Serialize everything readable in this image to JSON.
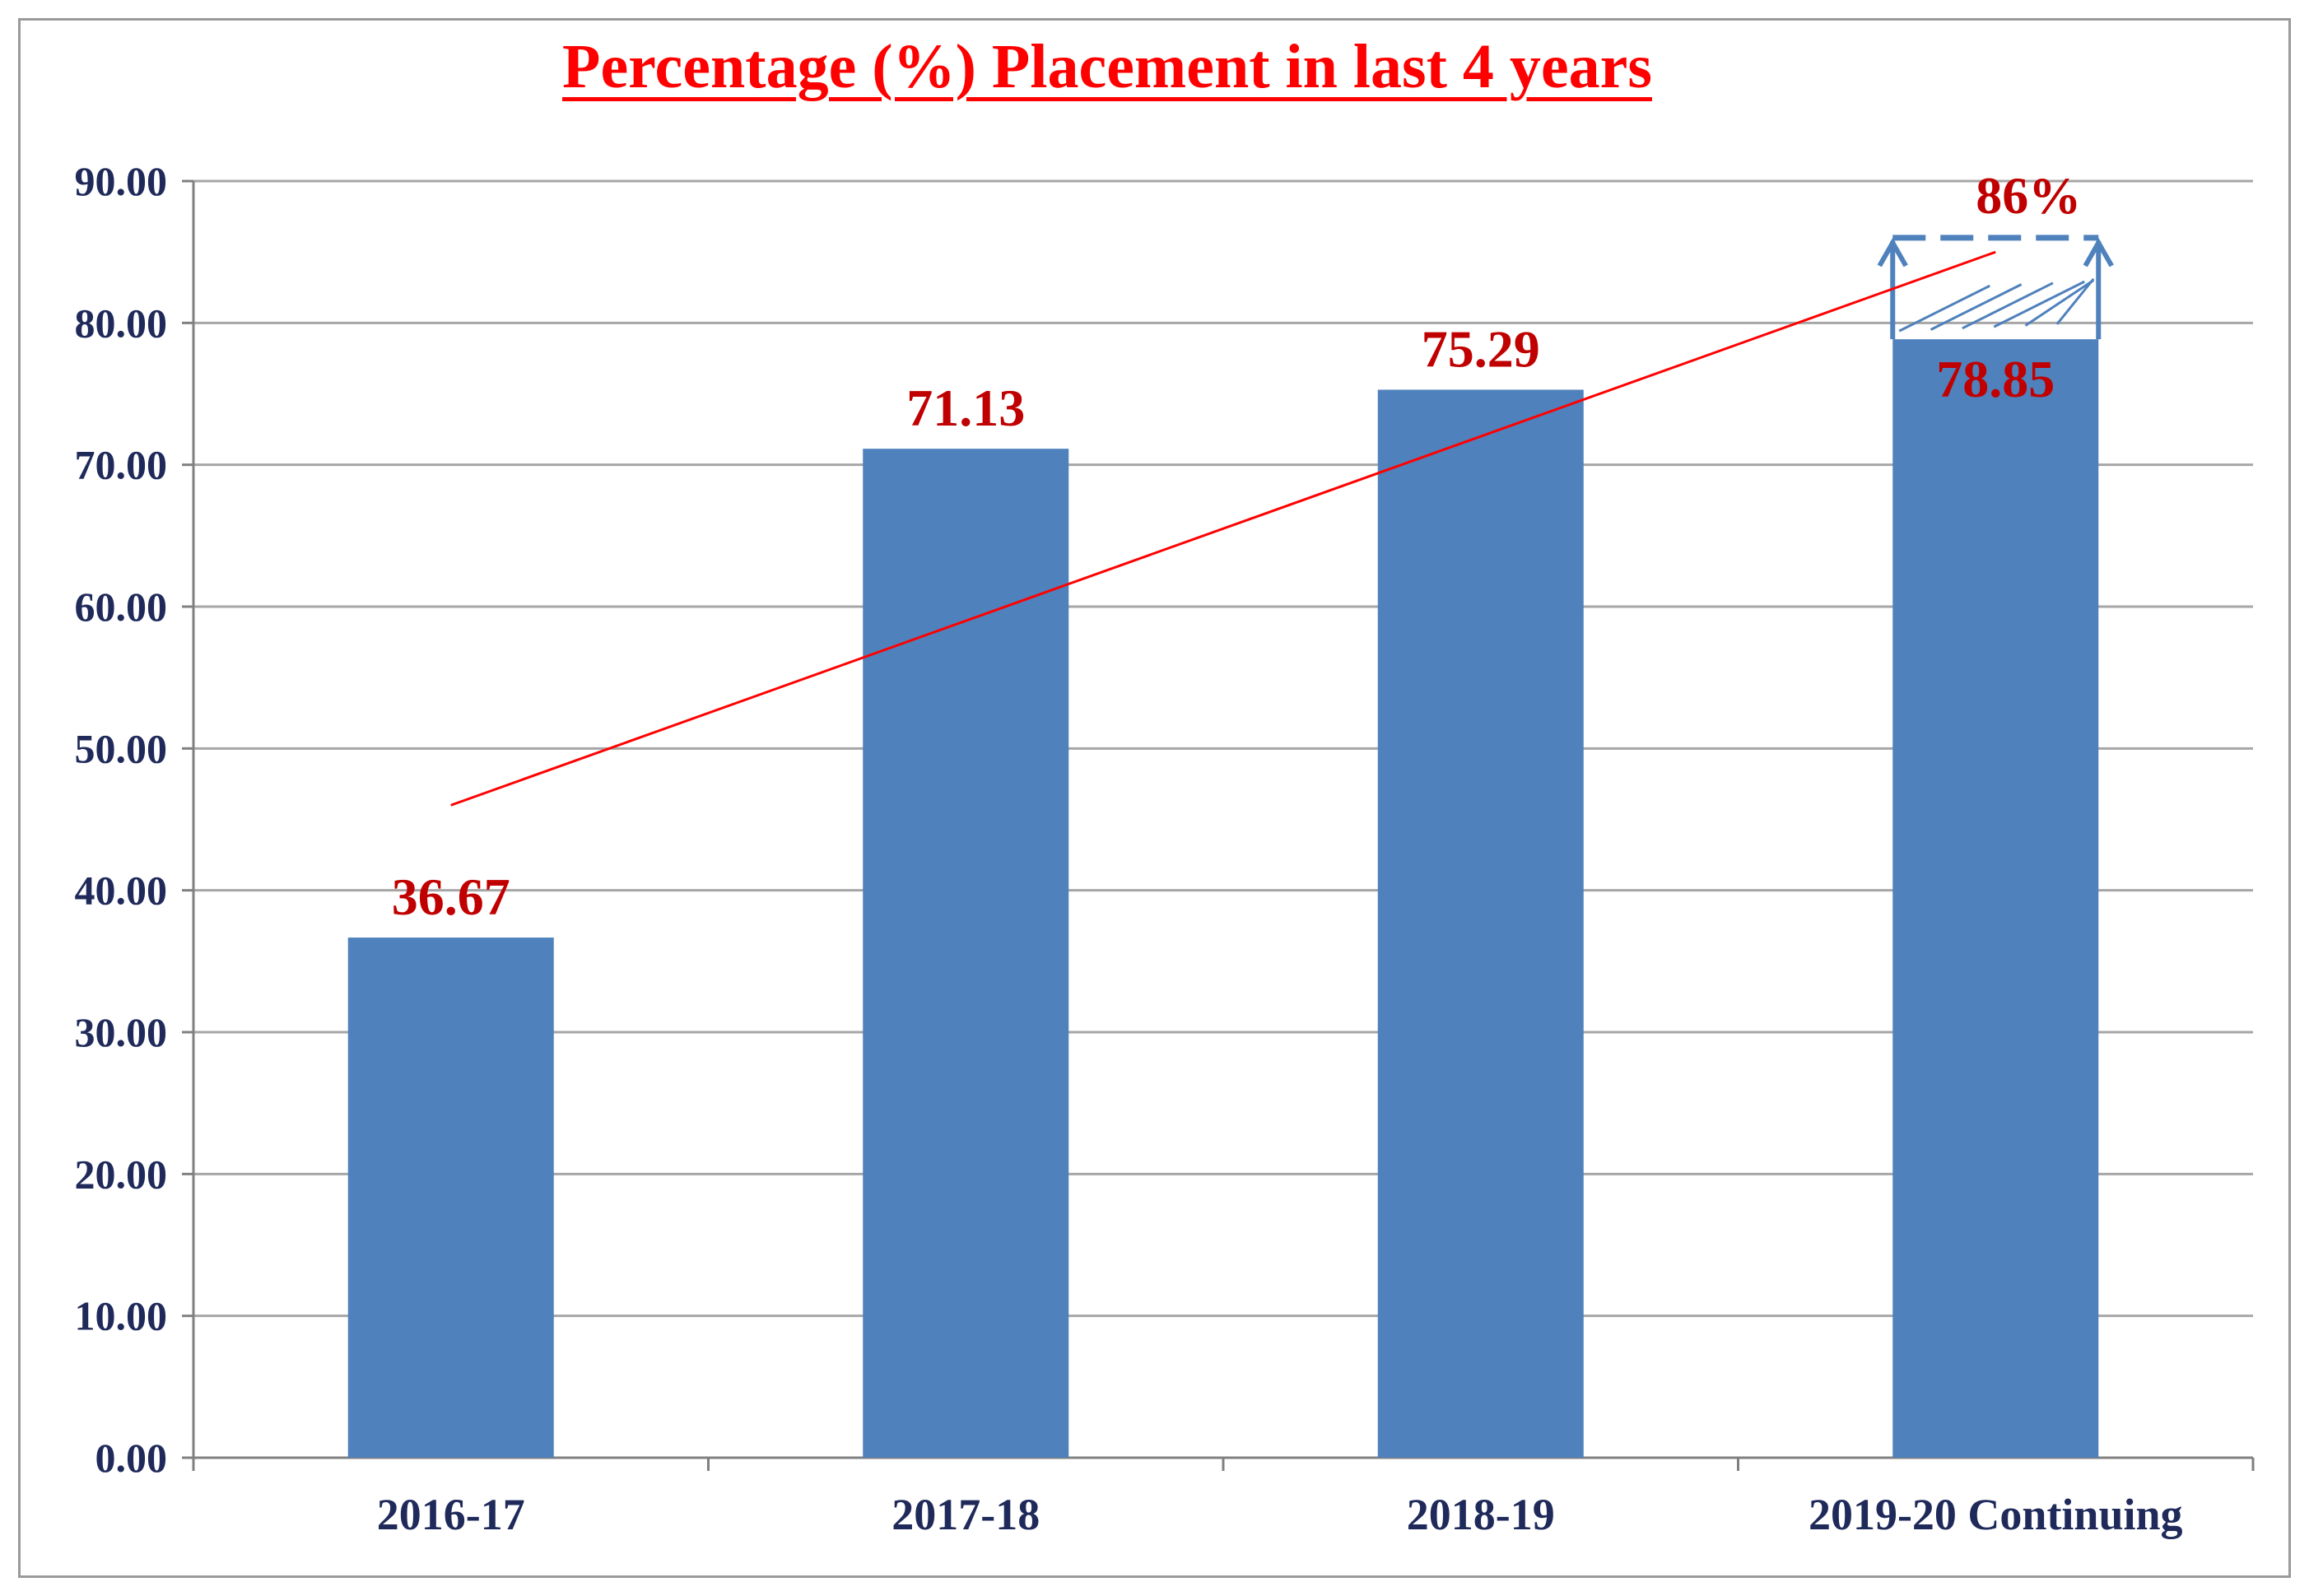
{
  "chart_data": {
    "type": "bar",
    "title": "Percentage (%) Placement in last 4 years",
    "categories": [
      "2016-17",
      "2017-18",
      "2018-19",
      "2019-20 Continuing"
    ],
    "values": [
      36.67,
      71.13,
      75.29,
      78.85
    ],
    "data_labels": [
      "36.67",
      "71.13",
      "75.29",
      "78.85"
    ],
    "ylim": [
      0,
      90
    ],
    "y_ticks": [
      "0.00",
      "10.00",
      "20.00",
      "30.00",
      "40.00",
      "50.00",
      "60.00",
      "70.00",
      "80.00",
      "90.00"
    ],
    "y_tick_values": [
      0,
      10,
      20,
      30,
      40,
      50,
      60,
      70,
      80,
      90
    ],
    "grid": true,
    "xlabel": "",
    "ylabel": "",
    "projection": {
      "category": "2019-20 Continuing",
      "from": 78.85,
      "to": 86,
      "label": "86%"
    },
    "trend_line": {
      "from": [
        0,
        46
      ],
      "to": [
        3,
        85
      ]
    },
    "colors": {
      "bar": "#4f81bd",
      "grid": "#a6a6a6",
      "trend": "#ff0000",
      "data_label": "#c00000",
      "title": "#ff0000",
      "axis_text": "#1f2a5a"
    }
  }
}
